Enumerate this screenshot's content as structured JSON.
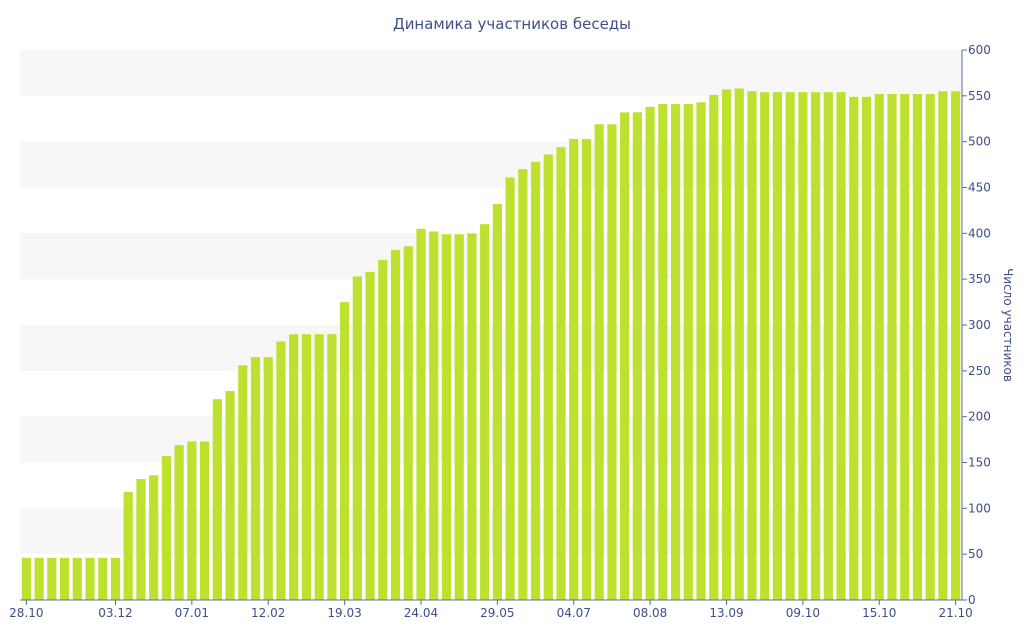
{
  "chart_data": {
    "type": "bar",
    "title": "Динамика участников беседы",
    "xlabel": "",
    "ylabel": "Число участников",
    "ylim": [
      0,
      600
    ],
    "yticks": [
      0,
      50,
      100,
      150,
      200,
      250,
      300,
      350,
      400,
      450,
      500,
      550,
      600
    ],
    "y_axis_position": "right",
    "grid": "alternating horizontal bands",
    "bar_color": "#bde12e",
    "x_tick_labels": [
      {
        "index": 0,
        "label": "28.10"
      },
      {
        "index": 7,
        "label": "03.12"
      },
      {
        "index": 13,
        "label": "07.01"
      },
      {
        "index": 19,
        "label": "12.02"
      },
      {
        "index": 25,
        "label": "19.03"
      },
      {
        "index": 31,
        "label": "24.04"
      },
      {
        "index": 37,
        "label": "29.05"
      },
      {
        "index": 43,
        "label": "04.07"
      },
      {
        "index": 49,
        "label": "08.08"
      },
      {
        "index": 55,
        "label": "13.09"
      },
      {
        "index": 61,
        "label": "09.10"
      },
      {
        "index": 67,
        "label": "15.10"
      },
      {
        "index": 73,
        "label": "21.10"
      }
    ],
    "values": [
      46,
      46,
      46,
      46,
      46,
      46,
      46,
      46,
      118,
      132,
      136,
      157,
      169,
      173,
      173,
      219,
      228,
      256,
      265,
      265,
      282,
      290,
      290,
      290,
      290,
      325,
      353,
      358,
      371,
      382,
      386,
      405,
      402,
      399,
      399,
      400,
      410,
      432,
      461,
      470,
      478,
      486,
      494,
      503,
      503,
      519,
      519,
      532,
      532,
      538,
      541,
      541,
      541,
      543,
      551,
      557,
      558,
      555,
      554,
      554,
      554,
      554,
      554,
      554,
      554,
      549,
      549,
      552,
      552,
      552,
      552,
      552,
      555,
      555
    ]
  }
}
